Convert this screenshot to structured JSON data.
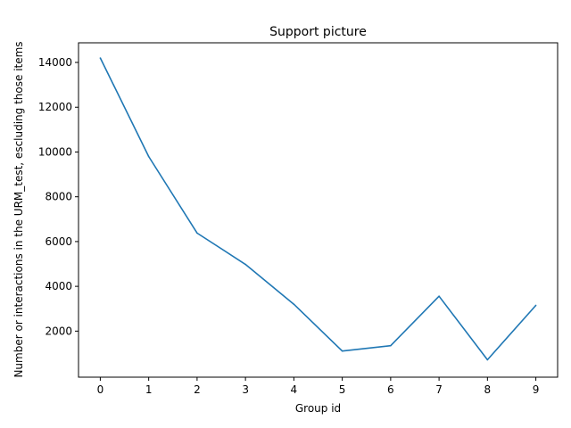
{
  "chart_data": {
    "type": "line",
    "title": "Support picture",
    "xlabel": "Group id",
    "ylabel": "Number or interactions in the URM_test, escluding those items",
    "x": [
      0,
      1,
      2,
      3,
      4,
      5,
      6,
      7,
      8,
      9
    ],
    "series": [
      {
        "values": [
          14200,
          9800,
          6380,
          4980,
          3200,
          1110,
          1350,
          3560,
          720,
          3150
        ],
        "color": "#1f77b4"
      }
    ],
    "xticks": [
      "0",
      "1",
      "2",
      "3",
      "4",
      "5",
      "6",
      "7",
      "8",
      "9"
    ],
    "yticks": [
      "2000",
      "4000",
      "6000",
      "8000",
      "10000",
      "12000",
      "14000"
    ],
    "xlim": [
      -0.45,
      9.45
    ],
    "ylim": [
      -57,
      14877
    ],
    "grid": false
  }
}
